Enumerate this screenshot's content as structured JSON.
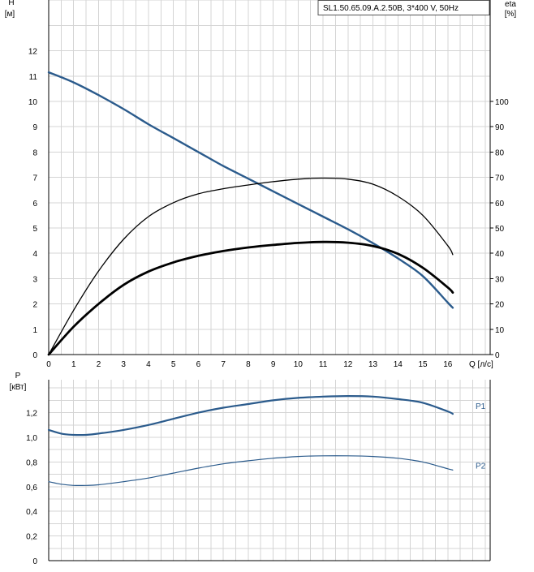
{
  "chart_data": [
    {
      "type": "line",
      "title": "SL1.50.65.09.A.2.50B, 3*400 V, 50Hz",
      "xlabel": "Q [л/с]",
      "ylabel": "H\n[м]",
      "ylabel_right": "eta\n[%]",
      "xlim": [
        0,
        17.7
      ],
      "ylim": [
        0,
        14
      ],
      "ylim_right": [
        0,
        140
      ],
      "x_ticks": [
        0,
        1,
        2,
        3,
        4,
        5,
        6,
        7,
        8,
        9,
        10,
        11,
        12,
        13,
        14,
        15,
        16
      ],
      "y_ticks": [
        0,
        1,
        2,
        3,
        4,
        5,
        6,
        7,
        8,
        9,
        10,
        11,
        12
      ],
      "y_ticks_right": [
        0,
        10,
        20,
        30,
        40,
        50,
        60,
        70,
        80,
        90,
        100
      ],
      "grid": true,
      "series": [
        {
          "axis": "left",
          "color": "#2b5b8c",
          "x": [
            0,
            1,
            2,
            3,
            4,
            5,
            6,
            7,
            8,
            9,
            10,
            11,
            12,
            13,
            14,
            15,
            16,
            16.2
          ],
          "y": [
            11.15,
            10.75,
            10.25,
            9.7,
            9.1,
            8.55,
            8.0,
            7.45,
            6.95,
            6.45,
            5.95,
            5.45,
            4.95,
            4.4,
            3.8,
            3.1,
            2.05,
            1.85
          ]
        },
        {
          "axis": "right",
          "color": "#000000",
          "x": [
            0,
            1,
            2,
            3,
            4,
            5,
            6,
            7,
            8,
            9,
            10,
            11,
            12,
            13,
            14,
            15,
            16,
            16.2
          ],
          "y": [
            0,
            17.5,
            33,
            45.5,
            54.5,
            60,
            63.5,
            65.5,
            67,
            68.3,
            69.3,
            69.7,
            69.3,
            67.3,
            62.5,
            55,
            43,
            39.5
          ]
        },
        {
          "axis": "right",
          "color": "#000000",
          "x": [
            0,
            1,
            2,
            3,
            4,
            5,
            6,
            7,
            8,
            9,
            10,
            11,
            12,
            13,
            14,
            15,
            16,
            16.2
          ],
          "y": [
            0,
            11,
            20,
            27.5,
            32.8,
            36.4,
            39,
            40.9,
            42.3,
            43.3,
            44.1,
            44.5,
            44.2,
            42.9,
            39.8,
            34.3,
            26.5,
            24.5
          ]
        }
      ]
    },
    {
      "type": "line",
      "title": "",
      "xlabel": "",
      "ylabel": "P\n[кВт]",
      "xlim": [
        0,
        17.7
      ],
      "ylim": [
        0,
        1.5
      ],
      "y_ticks": [
        0,
        0.2,
        0.4,
        0.6,
        0.8,
        1.0,
        1.2
      ],
      "y_tick_labels": [
        "0",
        "0,2",
        "0,4",
        "0,6",
        "0,8",
        "1,0",
        "1,2"
      ],
      "grid": true,
      "series": [
        {
          "name": "P1",
          "color": "#2b5b8c",
          "x": [
            0,
            0.5,
            1,
            1.5,
            2,
            3,
            4,
            5,
            6,
            7,
            8,
            9,
            10,
            11,
            12,
            13,
            14,
            15,
            16,
            16.2
          ],
          "y": [
            1.06,
            1.03,
            1.02,
            1.02,
            1.03,
            1.06,
            1.1,
            1.15,
            1.2,
            1.24,
            1.27,
            1.3,
            1.32,
            1.33,
            1.335,
            1.33,
            1.31,
            1.28,
            1.21,
            1.19
          ]
        },
        {
          "name": "P2",
          "color": "#2b5b8c",
          "x": [
            0,
            0.5,
            1,
            1.5,
            2,
            3,
            4,
            5,
            6,
            7,
            8,
            9,
            10,
            11,
            12,
            13,
            14,
            15,
            16,
            16.2
          ],
          "y": [
            0.64,
            0.62,
            0.61,
            0.61,
            0.615,
            0.64,
            0.67,
            0.71,
            0.75,
            0.785,
            0.81,
            0.83,
            0.845,
            0.85,
            0.85,
            0.845,
            0.83,
            0.8,
            0.745,
            0.735
          ]
        }
      ]
    }
  ]
}
